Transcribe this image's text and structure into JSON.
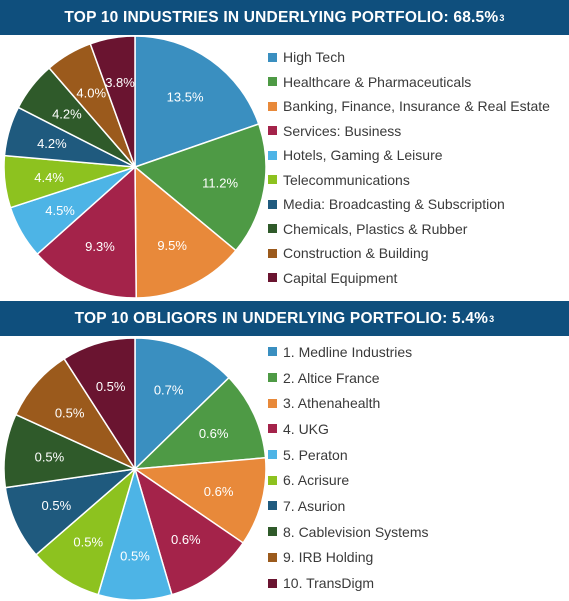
{
  "chart_data": [
    {
      "type": "pie",
      "title": "TOP 10 INDUSTRIES IN UNDERLYING PORTFOLIO: 68.5%",
      "title_footnote": "3",
      "categories": [
        "High Tech",
        "Healthcare & Pharmaceuticals",
        "Banking, Finance, Insurance & Real Estate",
        "Services: Business",
        "Hotels, Gaming & Leisure",
        "Telecommunications",
        "Media: Broadcasting & Subscription",
        "Chemicals, Plastics & Rubber",
        "Construction & Building",
        "Capital Equipment"
      ],
      "values": [
        13.5,
        11.2,
        9.5,
        9.3,
        4.5,
        4.4,
        4.2,
        4.2,
        4.0,
        3.8
      ],
      "labels": [
        "13.5%",
        "11.2%",
        "9.5%",
        "9.3%",
        "4.5%",
        "4.4%",
        "4.2%",
        "4.2%",
        "4.0%",
        "3.8%"
      ],
      "colors": [
        "#3a8fc0",
        "#4e9a45",
        "#e8893a",
        "#a4234a",
        "#4db4e6",
        "#8dc21f",
        "#1f5a7e",
        "#2f5a2a",
        "#9b5a1c",
        "#6a1430"
      ],
      "legend_position": "right"
    },
    {
      "type": "pie",
      "title": "TOP 10 OBLIGORS IN UNDERLYING PORTFOLIO: 5.4%",
      "title_footnote": "3",
      "categories": [
        "1. Medline Industries",
        "2. Altice France",
        "3. Athenahealth",
        "4. UKG",
        "5. Peraton",
        "6. Acrisure",
        "7. Asurion",
        "8. Cablevision Systems",
        "9. IRB Holding",
        "10. TransDigm"
      ],
      "values": [
        0.7,
        0.6,
        0.6,
        0.6,
        0.5,
        0.5,
        0.5,
        0.5,
        0.5,
        0.5
      ],
      "labels": [
        "0.7%",
        "0.6%",
        "0.6%",
        "0.6%",
        "0.5%",
        "0.5%",
        "0.5%",
        "0.5%",
        "0.5%",
        "0.5%"
      ],
      "colors": [
        "#3a8fc0",
        "#4e9a45",
        "#e8893a",
        "#a4234a",
        "#4db4e6",
        "#8dc21f",
        "#1f5a7e",
        "#2f5a2a",
        "#9b5a1c",
        "#6a1430"
      ],
      "legend_position": "right"
    }
  ]
}
